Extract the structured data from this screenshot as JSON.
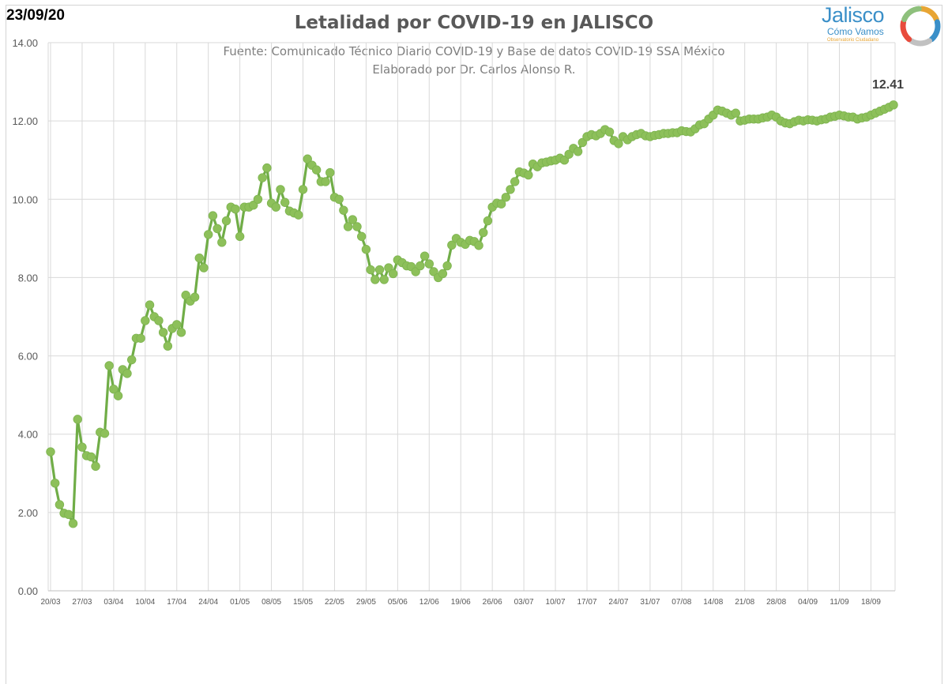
{
  "header": {
    "date": "23/09/20",
    "title": "Letalidad por COVID-19 en JALISCO",
    "subtitle_line1": "Fuente: Comunicado Técnico Diario COVID-19 y Base de datos COVID-19 SSA México",
    "subtitle_line2": "Elaborado por Dr. Carlos Alonso R."
  },
  "logo": {
    "name": "Jalisco",
    "tagline": "Cómo Vamos",
    "motto": "Observatorio Ciudadano",
    "ring_colors": [
      "#e8a534",
      "#3a8fc8",
      "#c1c1c1",
      "#e84b3c",
      "#8ec07c"
    ]
  },
  "colors": {
    "line": "#70ad47",
    "marker": "#8dc05a",
    "grid": "#d9d9d9",
    "axis_text": "#595959"
  },
  "chart_data": {
    "type": "line",
    "title": "Letalidad por COVID-19 en JALISCO",
    "xlabel": "",
    "ylabel": "",
    "ylim": [
      0,
      14
    ],
    "yticks": [
      "0.00",
      "2.00",
      "4.00",
      "6.00",
      "8.00",
      "10.00",
      "12.00",
      "14.00"
    ],
    "grid": true,
    "legend": "none",
    "xtick_labels": [
      "20/03",
      "27/03",
      "03/04",
      "10/04",
      "17/04",
      "24/04",
      "01/05",
      "08/05",
      "15/05",
      "22/05",
      "29/05",
      "05/06",
      "12/06",
      "19/06",
      "26/06",
      "03/07",
      "10/07",
      "17/07",
      "24/07",
      "31/07",
      "07/08",
      "14/08",
      "21/08",
      "28/08",
      "04/09",
      "11/09",
      "18/09"
    ],
    "start_date": "20/03",
    "end_date": "23/09",
    "last_value_label": "12.41",
    "series": [
      {
        "values": [
          3.55,
          2.75,
          2.2,
          1.98,
          1.95,
          1.72,
          4.38,
          3.67,
          3.45,
          3.42,
          3.18,
          4.05,
          4.02,
          5.75,
          5.15,
          4.98,
          5.65,
          5.55,
          5.9,
          6.45,
          6.45,
          6.9,
          7.3,
          7.0,
          6.9,
          6.6,
          6.25,
          6.7,
          6.8,
          6.6,
          7.55,
          7.4,
          7.5,
          8.5,
          8.25,
          9.1,
          9.58,
          9.25,
          8.9,
          9.45,
          9.8,
          9.75,
          9.05,
          9.8,
          9.8,
          9.85,
          10.0,
          10.55,
          10.8,
          9.9,
          9.8,
          10.25,
          9.92,
          9.7,
          9.65,
          9.6,
          10.25,
          11.03,
          10.87,
          10.75,
          10.45,
          10.45,
          10.68,
          10.05,
          10.0,
          9.72,
          9.3,
          9.48,
          9.3,
          9.05,
          8.72,
          8.2,
          7.95,
          8.2,
          7.95,
          8.25,
          8.1,
          8.45,
          8.38,
          8.3,
          8.28,
          8.15,
          8.3,
          8.55,
          8.35,
          8.15,
          8.0,
          8.1,
          8.3,
          8.83,
          9.0,
          8.9,
          8.85,
          8.95,
          8.92,
          8.82,
          9.15,
          9.45,
          9.8,
          9.9,
          9.88,
          10.05,
          10.25,
          10.45,
          10.7,
          10.67,
          10.62,
          10.9,
          10.83,
          10.93,
          10.95,
          10.98,
          11.0,
          11.05,
          11.0,
          11.15,
          11.3,
          11.22,
          11.45,
          11.6,
          11.65,
          11.62,
          11.68,
          11.78,
          11.72,
          11.5,
          11.42,
          11.6,
          11.52,
          11.6,
          11.65,
          11.68,
          11.62,
          11.6,
          11.63,
          11.65,
          11.68,
          11.68,
          11.7,
          11.7,
          11.75,
          11.73,
          11.72,
          11.8,
          11.9,
          11.93,
          12.05,
          12.15,
          12.28,
          12.25,
          12.2,
          12.15,
          12.2,
          12.0,
          12.02,
          12.05,
          12.05,
          12.05,
          12.08,
          12.1,
          12.15,
          12.1,
          12.0,
          11.95,
          11.93,
          11.98,
          12.02,
          12.0,
          12.03,
          12.02,
          12.0,
          12.03,
          12.05,
          12.1,
          12.12,
          12.15,
          12.13,
          12.1,
          12.1,
          12.05,
          12.08,
          12.1,
          12.15,
          12.2,
          12.25,
          12.3,
          12.35,
          12.41
        ]
      }
    ]
  }
}
